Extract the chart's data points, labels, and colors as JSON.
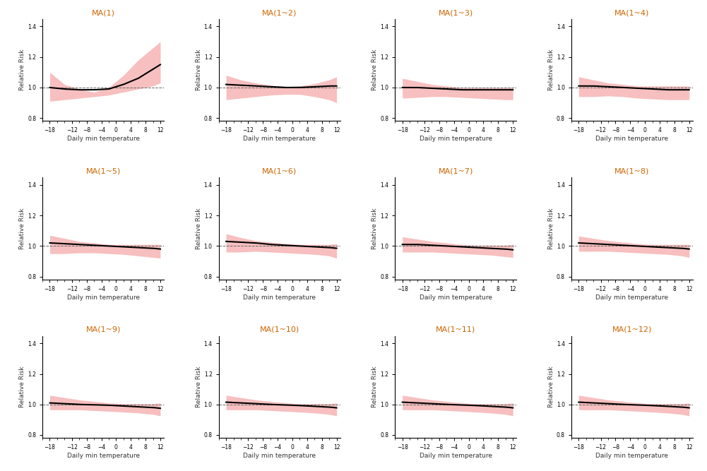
{
  "titles": [
    "MA(1)",
    "MA(1~2)",
    "MA(1~3)",
    "MA(1~4)",
    "MA(1~5)",
    "MA(1~6)",
    "MA(1~7)",
    "MA(1~8)",
    "MA(1~9)",
    "MA(1~10)",
    "MA(1~11)",
    "MA(1~12)"
  ],
  "title_color": "#CC6600",
  "xlabel": "Daily min temperature",
  "ylabel": "Relative Risk",
  "xlim": [
    -20,
    13
  ],
  "ylim": [
    0.78,
    1.45
  ],
  "xticks": [
    -18,
    -12,
    -8,
    -4,
    0,
    4,
    8,
    12
  ],
  "yticks": [
    0.8,
    1.0,
    1.2,
    1.4
  ],
  "band_color": "#F08080",
  "band_alpha": 0.5,
  "line_color": "#000000",
  "dashes_color": "#666666",
  "background_color": "#ffffff",
  "nrows": 3,
  "ncols": 4,
  "x_knots": [
    -18,
    -14,
    -10,
    -6,
    -2,
    2,
    6,
    10,
    12
  ],
  "curves": [
    {
      "center": [
        1.0,
        0.99,
        0.985,
        0.985,
        0.99,
        1.02,
        1.06,
        1.12,
        1.15
      ],
      "upper": [
        1.1,
        1.02,
        0.99,
        0.97,
        1.0,
        1.08,
        1.18,
        1.26,
        1.3
      ],
      "lower": [
        0.91,
        0.92,
        0.93,
        0.94,
        0.95,
        0.97,
        0.99,
        1.01,
        1.03
      ]
    },
    {
      "center": [
        1.02,
        1.015,
        1.01,
        1.005,
        1.0,
        1.0,
        1.005,
        1.01,
        1.01
      ],
      "upper": [
        1.08,
        1.05,
        1.03,
        1.015,
        1.005,
        1.01,
        1.025,
        1.05,
        1.07
      ],
      "lower": [
        0.92,
        0.93,
        0.94,
        0.95,
        0.955,
        0.955,
        0.94,
        0.92,
        0.9
      ]
    },
    {
      "center": [
        1.0,
        1.0,
        0.995,
        0.99,
        0.985,
        0.985,
        0.985,
        0.985,
        0.985
      ],
      "upper": [
        1.06,
        1.04,
        1.02,
        1.01,
        1.0,
        1.0,
        1.0,
        1.0,
        1.0
      ],
      "lower": [
        0.93,
        0.935,
        0.94,
        0.94,
        0.935,
        0.93,
        0.925,
        0.92,
        0.92
      ]
    },
    {
      "center": [
        1.01,
        1.01,
        1.005,
        1.0,
        0.995,
        0.99,
        0.985,
        0.985,
        0.985
      ],
      "upper": [
        1.07,
        1.05,
        1.03,
        1.02,
        1.01,
        1.01,
        1.01,
        1.01,
        1.01
      ],
      "lower": [
        0.94,
        0.94,
        0.945,
        0.94,
        0.93,
        0.925,
        0.92,
        0.92,
        0.92
      ]
    },
    {
      "center": [
        1.02,
        1.015,
        1.01,
        1.005,
        1.0,
        0.995,
        0.99,
        0.985,
        0.98
      ],
      "upper": [
        1.07,
        1.05,
        1.03,
        1.02,
        1.01,
        1.01,
        1.01,
        1.01,
        1.01
      ],
      "lower": [
        0.95,
        0.95,
        0.955,
        0.955,
        0.95,
        0.945,
        0.935,
        0.925,
        0.92
      ]
    },
    {
      "center": [
        1.03,
        1.025,
        1.02,
        1.01,
        1.005,
        1.0,
        0.995,
        0.99,
        0.985
      ],
      "upper": [
        1.08,
        1.055,
        1.035,
        1.025,
        1.015,
        1.01,
        1.01,
        1.01,
        1.015
      ],
      "lower": [
        0.96,
        0.96,
        0.965,
        0.96,
        0.955,
        0.95,
        0.945,
        0.935,
        0.92
      ]
    },
    {
      "center": [
        1.01,
        1.01,
        1.005,
        1.0,
        0.995,
        0.99,
        0.985,
        0.98,
        0.975
      ],
      "upper": [
        1.06,
        1.045,
        1.03,
        1.02,
        1.01,
        1.005,
        1.005,
        1.005,
        1.01
      ],
      "lower": [
        0.96,
        0.96,
        0.96,
        0.955,
        0.95,
        0.945,
        0.94,
        0.93,
        0.925
      ]
    },
    {
      "center": [
        1.02,
        1.015,
        1.01,
        1.005,
        1.0,
        0.995,
        0.99,
        0.985,
        0.98
      ],
      "upper": [
        1.065,
        1.05,
        1.035,
        1.025,
        1.015,
        1.01,
        1.01,
        1.01,
        1.01
      ],
      "lower": [
        0.965,
        0.965,
        0.965,
        0.96,
        0.955,
        0.95,
        0.945,
        0.935,
        0.925
      ]
    },
    {
      "center": [
        1.01,
        1.005,
        1.0,
        0.998,
        0.995,
        0.99,
        0.985,
        0.98,
        0.975
      ],
      "upper": [
        1.06,
        1.045,
        1.03,
        1.02,
        1.01,
        1.005,
        1.005,
        1.005,
        1.01
      ],
      "lower": [
        0.965,
        0.965,
        0.965,
        0.96,
        0.955,
        0.95,
        0.944,
        0.935,
        0.925
      ]
    },
    {
      "center": [
        1.015,
        1.01,
        1.005,
        1.0,
        0.997,
        0.993,
        0.988,
        0.983,
        0.978
      ],
      "upper": [
        1.06,
        1.045,
        1.03,
        1.02,
        1.01,
        1.005,
        1.005,
        1.005,
        1.01
      ],
      "lower": [
        0.965,
        0.965,
        0.965,
        0.96,
        0.955,
        0.95,
        0.944,
        0.935,
        0.925
      ]
    },
    {
      "center": [
        1.015,
        1.01,
        1.005,
        1.0,
        0.997,
        0.993,
        0.988,
        0.983,
        0.978
      ],
      "upper": [
        1.06,
        1.045,
        1.03,
        1.02,
        1.01,
        1.005,
        1.005,
        1.005,
        1.01
      ],
      "lower": [
        0.965,
        0.965,
        0.965,
        0.96,
        0.955,
        0.95,
        0.944,
        0.935,
        0.925
      ]
    },
    {
      "center": [
        1.015,
        1.01,
        1.005,
        1.0,
        0.997,
        0.993,
        0.988,
        0.983,
        0.978
      ],
      "upper": [
        1.06,
        1.045,
        1.03,
        1.02,
        1.01,
        1.005,
        1.005,
        1.005,
        1.01
      ],
      "lower": [
        0.965,
        0.965,
        0.965,
        0.96,
        0.955,
        0.95,
        0.944,
        0.935,
        0.925
      ]
    }
  ]
}
